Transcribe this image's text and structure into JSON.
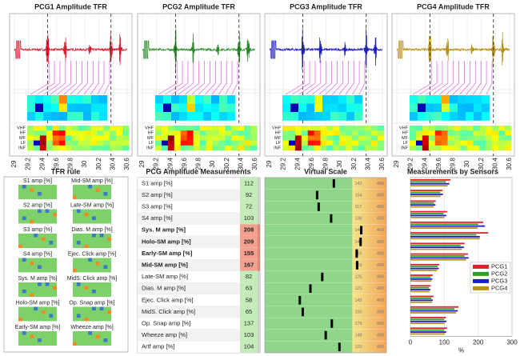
{
  "tfr_panels": {
    "titles": [
      "PCG1 Amplitude TFR",
      "PCG2 Amplitude TFR",
      "PCG3 Amplitude TFR",
      "PCG4 Amplitude TFR"
    ],
    "colors": [
      "#d42030",
      "#2a8a2a",
      "#1c1cc8",
      "#b8901c"
    ],
    "xlim": [
      29,
      30.6
    ],
    "xticks": [
      29,
      29.2,
      29.4,
      29.6,
      29.8,
      30,
      30.2,
      30.4,
      30.6
    ],
    "event_lines": [
      29.47,
      30.37
    ],
    "bands": [
      "VHF",
      "HF",
      "MF",
      "LF",
      "INF"
    ]
  },
  "tfr_rule": {
    "title": "TFR rule",
    "labels": [
      "S1 amp [%]",
      "Mid-SM amp [%]",
      "S2 amp [%]",
      "Late-SM amp [%]",
      "S3 amp [%]",
      "Dias. M amp [%]",
      "S4 amp [%]",
      "Ejec. Click amp [%]",
      "Sys. M amp [%]",
      "MidS. Click amp [%]",
      "Holo-SM amp [%]",
      "Op. Snap amp [%]",
      "Early-SM amp [%]",
      "Wheeze amp [%]"
    ]
  },
  "measurements": {
    "title": "PCG Amplitude Measurements",
    "rows": [
      {
        "name": "S1 amp [%]",
        "value": 112,
        "flag": false
      },
      {
        "name": "S2 amp [%]",
        "value": 92,
        "flag": false
      },
      {
        "name": "S3 amp [%]",
        "value": 72,
        "flag": false
      },
      {
        "name": "S4 amp [%]",
        "value": 103,
        "flag": false
      },
      {
        "name": "Sys. M amp [%]",
        "value": 208,
        "flag": true
      },
      {
        "name": "Holo-SM amp [%]",
        "value": 209,
        "flag": true
      },
      {
        "name": "Early-SM amp [%]",
        "value": 155,
        "flag": true
      },
      {
        "name": "Mid-SM amp [%]",
        "value": 167,
        "flag": true
      },
      {
        "name": "Late-SM amp [%]",
        "value": 82,
        "flag": false
      },
      {
        "name": "Dias. M amp [%]",
        "value": 63,
        "flag": false
      },
      {
        "name": "Ejec. Click amp [%]",
        "value": 58,
        "flag": false
      },
      {
        "name": "MidS. Click amp [%]",
        "value": 65,
        "flag": false
      },
      {
        "name": "Op. Snap amp [%]",
        "value": 137,
        "flag": false
      },
      {
        "name": "Wheeze amp [%]",
        "value": 103,
        "flag": false
      },
      {
        "name": "Artf amp [%]",
        "value": 104,
        "flag": false
      }
    ]
  },
  "virtual_scale": {
    "title": "Virtual Scale",
    "thresholds": [
      142,
      154,
      117,
      136,
      140,
      148,
      119,
      129,
      125,
      121,
      145,
      150,
      179,
      148,
      122
    ],
    "max": 400
  },
  "sensors": {
    "title": "Measurements by Sensors",
    "xlim": [
      0,
      300
    ],
    "xticks": [
      0,
      100,
      200,
      300
    ],
    "xlabel": "%",
    "legend": "right",
    "series": [
      {
        "name": "PCG1",
        "color": "#e0202a",
        "values": [
          118,
          95,
          75,
          108,
          215,
          230,
          160,
          170,
          85,
          66,
          60,
          68,
          142,
          105,
          108
        ]
      },
      {
        "name": "PCG2",
        "color": "#2aa02a",
        "values": [
          105,
          88,
          70,
          98,
          200,
          195,
          148,
          160,
          80,
          60,
          55,
          62,
          130,
          100,
          100
        ]
      },
      {
        "name": "PCG3",
        "color": "#1c1cd0",
        "values": [
          115,
          96,
          74,
          106,
          220,
          205,
          158,
          172,
          84,
          65,
          59,
          66,
          140,
          106,
          106
        ]
      },
      {
        "name": "PCG4",
        "color": "#b8901c",
        "values": [
          110,
          90,
          69,
          100,
          198,
          205,
          152,
          165,
          79,
          62,
          57,
          64,
          135,
          101,
          102
        ]
      }
    ]
  }
}
